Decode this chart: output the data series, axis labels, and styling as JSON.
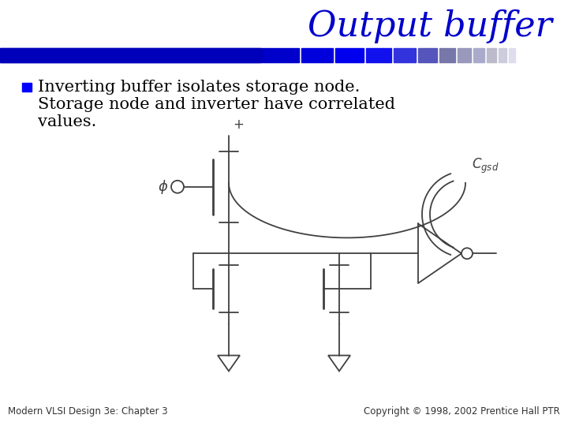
{
  "title": "Output buffer",
  "title_color": "#0000CC",
  "title_fontsize": 32,
  "bg_color": "#FFFFFF",
  "bullet_text_line1": "Inverting buffer isolates storage node.",
  "bullet_text_line2": "Storage node and inverter have correlated",
  "bullet_text_line3": "values.",
  "bullet_color": "#0000FF",
  "text_color": "#000000",
  "text_fontsize": 15,
  "footer_left": "Modern VLSI Design 3e: Chapter 3",
  "footer_right": "Copyright © 1998, 2002 Prentice Hall PTR",
  "footer_fontsize": 8.5,
  "line_color": "#404040",
  "lw": 1.3
}
